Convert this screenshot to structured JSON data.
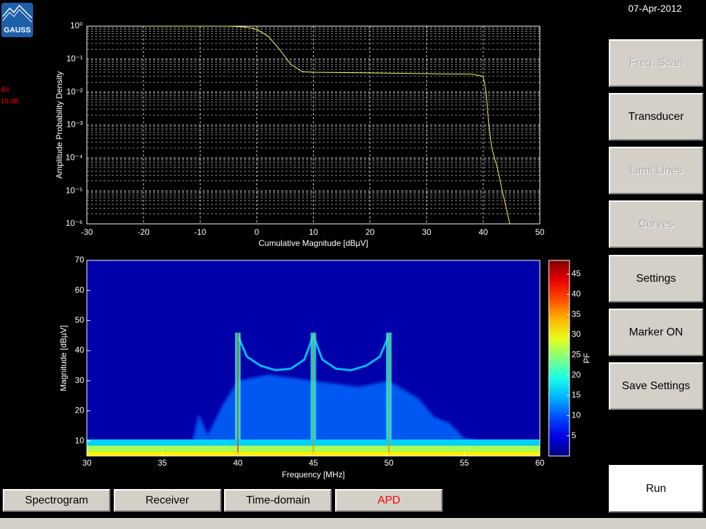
{
  "header": {
    "logo": "GAUSS",
    "date": "07-Apr-2012"
  },
  "status": {
    "att_label": "Att",
    "att_value": "10 dB"
  },
  "chart_data": [
    {
      "type": "line",
      "log_y": true,
      "grid": true,
      "xlabel": "Cumulative Magnitude [dBµV]",
      "ylabel": "Amplitude Probability Density",
      "xlim": [
        -30,
        50
      ],
      "xticks": [
        -30,
        -20,
        -10,
        0,
        10,
        20,
        30,
        40,
        50
      ],
      "ylim": [
        1e-06,
        1
      ],
      "yticks": [
        {
          "value": 1e-06,
          "label": "10⁻⁶"
        },
        {
          "value": 1e-05,
          "label": "10⁻⁵"
        },
        {
          "value": 0.0001,
          "label": "10⁻⁴"
        },
        {
          "value": 0.001,
          "label": "10⁻³"
        },
        {
          "value": 0.01,
          "label": "10⁻²"
        },
        {
          "value": 0.1,
          "label": "10⁻¹"
        },
        {
          "value": 1,
          "label": "10⁰"
        }
      ],
      "x": [
        -20,
        -5,
        -2,
        0,
        2,
        4,
        6,
        8,
        10,
        20,
        30,
        38,
        40,
        40.5,
        41,
        41.5,
        42.5,
        43.5,
        44.7
      ],
      "series": [
        {
          "color": "#ffff66",
          "values": [
            1,
            1,
            0.95,
            0.8,
            0.5,
            0.2,
            0.07,
            0.042,
            0.04,
            0.038,
            0.036,
            0.035,
            0.03,
            0.01,
            0.001,
            0.0002,
            5e-05,
            8e-06,
            1e-06
          ]
        }
      ]
    },
    {
      "type": "spectrogram",
      "colormap": "jet",
      "xlabel": "Frequency [MHz]",
      "ylabel": "Magnitude [dBµV]",
      "colorbar_label": "PF",
      "xlim": [
        30,
        60
      ],
      "xticks": [
        30,
        35,
        40,
        45,
        50,
        55,
        60
      ],
      "ylim": [
        5,
        70
      ],
      "yticks": [
        10,
        20,
        30,
        40,
        50,
        60,
        70
      ],
      "clim": [
        0,
        48.4
      ],
      "cticks": [
        5,
        10,
        15,
        20,
        25,
        30,
        35,
        40,
        45
      ],
      "background_pf": 2,
      "floor": {
        "y": [
          5,
          6.5,
          8.5,
          10.5
        ],
        "pf": [
          31,
          26,
          16
        ]
      },
      "region": {
        "pf": 11,
        "x": [
          37,
          37.4,
          38,
          39,
          40,
          42,
          45,
          48,
          50,
          52,
          53,
          54,
          55,
          56
        ],
        "y": [
          10,
          19,
          12,
          22,
          30,
          32,
          30,
          28,
          30,
          24,
          18,
          16,
          11,
          10
        ]
      },
      "envelope": {
        "pf": 15,
        "x": [
          40,
          40.6,
          41.5,
          42.5,
          43.5,
          44.4,
          45,
          45.6,
          46.5,
          47.5,
          48.5,
          49.4,
          50
        ],
        "y": [
          45,
          38,
          35,
          33.5,
          34,
          37,
          45,
          37,
          34,
          33.5,
          35,
          38,
          45
        ]
      },
      "spikes": {
        "x": [
          40,
          45,
          50
        ],
        "peak": [
          46,
          46,
          46
        ],
        "pf": [
          40,
          36,
          36
        ]
      }
    }
  ],
  "buttons": [
    {
      "label": "Freq. Scan",
      "enabled": false
    },
    {
      "label": "Transducer",
      "enabled": true
    },
    {
      "label": "Limit Lines",
      "enabled": false
    },
    {
      "label": "Curves",
      "enabled": false
    },
    {
      "label": "Settings",
      "enabled": true
    },
    {
      "label": "Marker ON",
      "enabled": true
    },
    {
      "label": "Save Settings",
      "enabled": true
    },
    {
      "label": "Run",
      "enabled": true
    }
  ],
  "tabs": [
    {
      "label": "Spectrogram",
      "active": false
    },
    {
      "label": "Receiver",
      "active": false
    },
    {
      "label": "Time-domain",
      "active": false
    },
    {
      "label": "APD",
      "active": true
    }
  ]
}
